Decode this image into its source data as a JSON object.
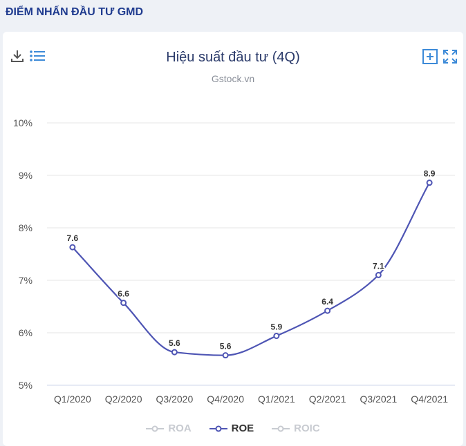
{
  "header": {
    "title": "ĐIỂM NHẤN ĐẦU TƯ GMD"
  },
  "toolbar": {
    "left_icons": [
      "download-icon",
      "menu-list-icon"
    ],
    "right_icons": [
      "add-box-icon",
      "fullscreen-icon"
    ]
  },
  "colors": {
    "accent": "#4e55b4",
    "title": "#1f3b8f",
    "grid": "#e6e6e6",
    "disabled": "#c8cbd1"
  },
  "chart_data": {
    "type": "line",
    "title": "Hiệu suất đầu tư (4Q)",
    "subtitle": "Gstock.vn",
    "categories": [
      "Q1/2020",
      "Q2/2020",
      "Q3/2020",
      "Q4/2020",
      "Q1/2021",
      "Q2/2021",
      "Q3/2021",
      "Q4/2021"
    ],
    "series": [
      {
        "name": "ROE",
        "values": [
          7.6,
          6.6,
          5.6,
          5.6,
          5.9,
          6.4,
          7.1,
          8.9
        ],
        "plot": [
          7.63,
          6.57,
          5.63,
          5.57,
          5.94,
          6.42,
          7.1,
          8.86
        ]
      }
    ],
    "ylim": [
      5,
      10
    ],
    "yticks": [
      "5%",
      "6%",
      "7%",
      "8%",
      "9%",
      "10%"
    ],
    "grid": true,
    "legend": [
      {
        "name": "ROA",
        "active": false
      },
      {
        "name": "ROE",
        "active": true
      },
      {
        "name": "ROIC",
        "active": false
      }
    ],
    "legend_position": "bottom"
  }
}
